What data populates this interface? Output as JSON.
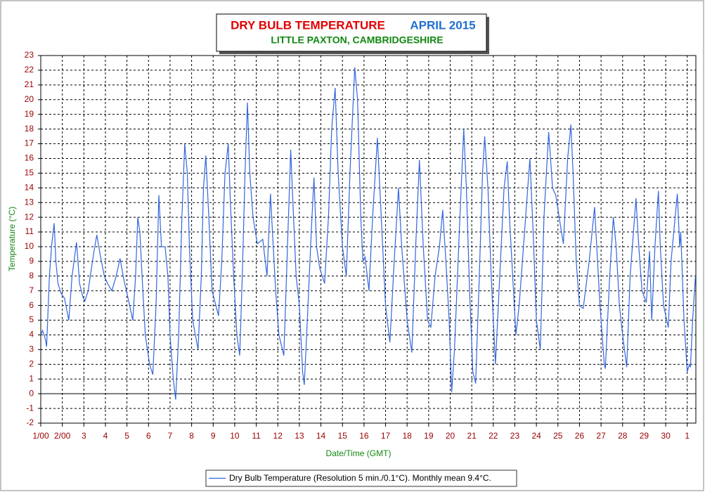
{
  "chart_data": {
    "type": "line",
    "title": "DRY BULB TEMPERATURE",
    "title_date": "APRIL 2015",
    "subtitle": "LITTLE PAXTON, CAMBRIDGESHIRE",
    "x_label": "Date/Time (GMT)",
    "y_label": "Temperature (°C)",
    "grid": true,
    "xlim": [
      0,
      30.4
    ],
    "ylim": [
      -2,
      23
    ],
    "yticks": [
      -2,
      -1,
      0,
      1,
      2,
      3,
      4,
      5,
      6,
      7,
      8,
      9,
      10,
      11,
      12,
      13,
      14,
      15,
      16,
      17,
      18,
      19,
      20,
      21,
      22,
      23
    ],
    "xticks": [
      {
        "value": 0,
        "label": "1/00"
      },
      {
        "value": 1,
        "label": "2/00"
      },
      {
        "value": 2,
        "label": "3"
      },
      {
        "value": 3,
        "label": "4"
      },
      {
        "value": 4,
        "label": "5"
      },
      {
        "value": 5,
        "label": "6"
      },
      {
        "value": 6,
        "label": "7"
      },
      {
        "value": 7,
        "label": "8"
      },
      {
        "value": 8,
        "label": "9"
      },
      {
        "value": 9,
        "label": "10"
      },
      {
        "value": 10,
        "label": "11"
      },
      {
        "value": 11,
        "label": "12"
      },
      {
        "value": 12,
        "label": "13"
      },
      {
        "value": 13,
        "label": "14"
      },
      {
        "value": 14,
        "label": "15"
      },
      {
        "value": 15,
        "label": "16"
      },
      {
        "value": 16,
        "label": "17"
      },
      {
        "value": 17,
        "label": "18"
      },
      {
        "value": 18,
        "label": "19"
      },
      {
        "value": 19,
        "label": "20"
      },
      {
        "value": 20,
        "label": "21"
      },
      {
        "value": 21,
        "label": "22"
      },
      {
        "value": 22,
        "label": "23"
      },
      {
        "value": 23,
        "label": "24"
      },
      {
        "value": 24,
        "label": "25"
      },
      {
        "value": 25,
        "label": "26"
      },
      {
        "value": 26,
        "label": "27"
      },
      {
        "value": 27,
        "label": "28"
      },
      {
        "value": 28,
        "label": "29"
      },
      {
        "value": 29,
        "label": "30"
      },
      {
        "value": 30,
        "label": "1"
      }
    ],
    "x": [
      0,
      0.08,
      0.2,
      0.27,
      0.4,
      0.5,
      0.62,
      0.7,
      0.8,
      0.95,
      1.1,
      1.3,
      1.45,
      1.66,
      1.8,
      1.95,
      2.05,
      2.2,
      2.45,
      2.6,
      2.75,
      2.95,
      3.1,
      3.3,
      3.5,
      3.68,
      3.85,
      4.05,
      4.27,
      4.4,
      4.5,
      4.6,
      4.7,
      4.85,
      5.05,
      5.2,
      5.35,
      5.48,
      5.6,
      5.77,
      5.9,
      6.0,
      6.15,
      6.26,
      6.4,
      6.55,
      6.68,
      6.8,
      6.9,
      7.05,
      7.3,
      7.45,
      7.55,
      7.66,
      7.8,
      7.95,
      8.25,
      8.4,
      8.55,
      8.7,
      8.8,
      8.95,
      9.1,
      9.23,
      9.35,
      9.48,
      9.59,
      9.7,
      9.85,
      10.05,
      10.3,
      10.5,
      10.66,
      10.75,
      10.9,
      11.05,
      11.28,
      11.45,
      11.6,
      11.7,
      11.85,
      12.0,
      12.15,
      12.23,
      12.4,
      12.55,
      12.68,
      12.8,
      12.95,
      13.17,
      13.35,
      13.5,
      13.66,
      13.8,
      14.0,
      14.18,
      14.35,
      14.57,
      14.7,
      14.85,
      14.95,
      15.05,
      15.23,
      15.4,
      15.62,
      15.8,
      16.0,
      16.2,
      16.4,
      16.6,
      16.75,
      17.0,
      17.22,
      17.4,
      17.57,
      17.75,
      17.95,
      18.1,
      18.3,
      18.5,
      18.65,
      18.8,
      18.95,
      19.07,
      19.2,
      19.45,
      19.63,
      19.75,
      19.9,
      20.05,
      20.18,
      20.35,
      20.5,
      20.6,
      20.75,
      20.9,
      21.1,
      21.3,
      21.5,
      21.65,
      21.75,
      21.9,
      22.05,
      22.2,
      22.5,
      22.7,
      22.85,
      23.0,
      23.18,
      23.35,
      23.57,
      23.75,
      23.9,
      24.13,
      24.25,
      24.45,
      24.6,
      24.7,
      24.85,
      25.0,
      25.17,
      25.45,
      25.7,
      25.8,
      25.95,
      26.15,
      26.2,
      26.4,
      26.57,
      26.7,
      26.85,
      27.0,
      27.19,
      27.35,
      27.62,
      27.75,
      27.9,
      28.1,
      28.25,
      28.35,
      28.5,
      28.66,
      28.75,
      28.9,
      29.12,
      29.25,
      29.54,
      29.65,
      29.7,
      29.85,
      30.0,
      30.1,
      30.15,
      30.25,
      30.38
    ],
    "series": [
      {
        "name": "Dry Bulb Temperature (Resolution 5 min./0.1°C). Monthly mean 9.4°C.",
        "color": "#3366dd",
        "values": [
          4,
          4.3,
          3.8,
          3.2,
          8,
          10,
          11.6,
          9,
          7.5,
          6.8,
          6.5,
          5,
          8,
          10.3,
          7.5,
          6.6,
          6.3,
          7,
          9.5,
          10.8,
          9.5,
          8,
          7.5,
          7,
          8,
          9.2,
          7.8,
          6.5,
          5,
          8,
          12,
          11,
          8,
          4,
          2,
          1.3,
          6,
          13.5,
          10,
          10,
          8,
          4,
          1,
          -0.4,
          4,
          12,
          17,
          15,
          10,
          5,
          3,
          8,
          14,
          16.2,
          12,
          7,
          5.3,
          9,
          15,
          17,
          13,
          8,
          4,
          2.6,
          8,
          15,
          19.8,
          15,
          12,
          10.2,
          10.5,
          8,
          13.6,
          11,
          7,
          4,
          2.6,
          10,
          16.6,
          13,
          8,
          6,
          1.5,
          0.6,
          6,
          11,
          14.7,
          10,
          8.5,
          7.5,
          12,
          18,
          20.8,
          15,
          10,
          8,
          15,
          22.2,
          20,
          12,
          9,
          9.3,
          7,
          12,
          17.4,
          12,
          6,
          3.5,
          9,
          14,
          10,
          5,
          2.8,
          10,
          15.9,
          10,
          5,
          4.5,
          8,
          10,
          12.5,
          9,
          5,
          0.1,
          3,
          12,
          18,
          14,
          7,
          1.5,
          0.7,
          8,
          15,
          17.5,
          14,
          8,
          2,
          8,
          14,
          15.8,
          12,
          8,
          4,
          6,
          12,
          16,
          11,
          5,
          3,
          12,
          17.8,
          14,
          13.5,
          11.3,
          10.2,
          16,
          18.3,
          15,
          9,
          6,
          5.8,
          9,
          12.7,
          10,
          6,
          2,
          1.7,
          8,
          12,
          10,
          6,
          4,
          1.8,
          8,
          13.3,
          10,
          7,
          6.2,
          9.7,
          5,
          10,
          13.8,
          10,
          6,
          4.5,
          9,
          13.6,
          10,
          11,
          5,
          1.5,
          2,
          1.8,
          5,
          8
        ]
      }
    ]
  }
}
